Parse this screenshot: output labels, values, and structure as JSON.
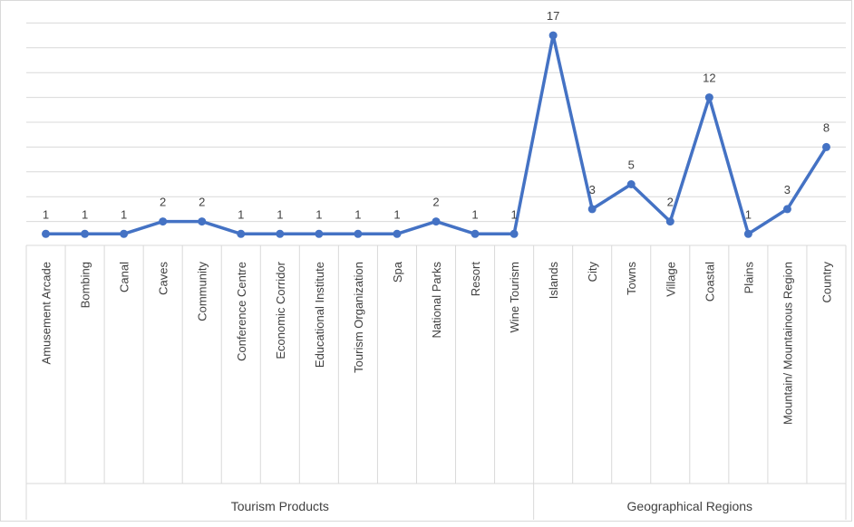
{
  "chart_data": {
    "type": "line",
    "categories": [
      "Amusement Arcade",
      "Bombing",
      "Canal",
      "Caves",
      "Community",
      "Conference Centre",
      "Economic Corridor",
      "Educational Institute",
      "Tourism Organization",
      "Spa",
      "National Parks",
      "Resort",
      "Wine Tourism",
      "Islands",
      "City",
      "Towns",
      "Village",
      "Coastal",
      "Plains",
      "Mountain/ Mountainous Region",
      "Country"
    ],
    "values": [
      1,
      1,
      1,
      2,
      2,
      1,
      1,
      1,
      1,
      1,
      2,
      1,
      1,
      17,
      3,
      5,
      2,
      12,
      1,
      3,
      8
    ],
    "groups": [
      {
        "label": "Tourism Products",
        "count": 13
      },
      {
        "label": "Geographical Regions",
        "count": 8
      }
    ],
    "ylim": [
      0,
      18
    ],
    "grid": true,
    "data_labels": true,
    "colors": {
      "line": "#4472C4",
      "grid": "#d9d9d9",
      "text": "#404040"
    }
  }
}
